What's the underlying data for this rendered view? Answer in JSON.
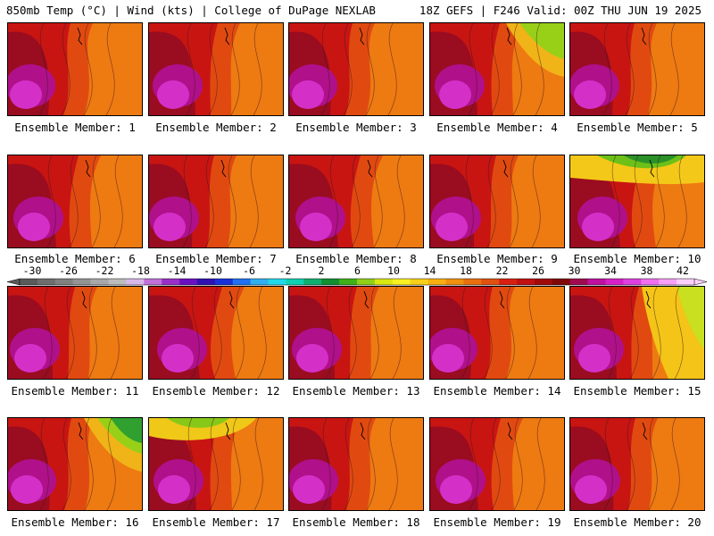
{
  "header": {
    "left": "850mb Temp (°C) | Wind (kts) | College of DuPage NEXLAB",
    "right": "18Z GEFS | F246 Valid: 00Z THU JUN 19 2025"
  },
  "colorbar": {
    "labels": [
      "-30",
      "-26",
      "-22",
      "-18",
      "-14",
      "-10",
      "-6",
      "-2",
      "2",
      "6",
      "10",
      "14",
      "18",
      "22",
      "26",
      "30",
      "34",
      "38",
      "42"
    ],
    "colors": [
      "#5a5a5a",
      "#6e6e6e",
      "#808080",
      "#949494",
      "#a8a8a8",
      "#bcbcbc",
      "#d7b8e8",
      "#c070d8",
      "#9a30c8",
      "#6a10c0",
      "#3010b0",
      "#1830d8",
      "#2070f0",
      "#30b0f0",
      "#20d8e8",
      "#10d0b0",
      "#10b070",
      "#109030",
      "#40b018",
      "#90d018",
      "#d8e810",
      "#f8f020",
      "#f8d018",
      "#f8b010",
      "#f09010",
      "#e87010",
      "#e05010",
      "#d82010",
      "#c01010",
      "#a00a0a",
      "#800808",
      "#a00a50",
      "#c010a0",
      "#d820c8",
      "#e040e0",
      "#f070f0",
      "#f8a0f8",
      "#fcd0fc"
    ]
  },
  "panels": [
    {
      "label": "Ensemble Member: 1",
      "scheme": "hot-west"
    },
    {
      "label": "Ensemble Member: 2",
      "scheme": "hot-west"
    },
    {
      "label": "Ensemble Member: 3",
      "scheme": "hot-west"
    },
    {
      "label": "Ensemble Member: 4",
      "scheme": "cool-ne"
    },
    {
      "label": "Ensemble Member: 5",
      "scheme": "hot-west"
    },
    {
      "label": "Ensemble Member: 6",
      "scheme": "hot-west"
    },
    {
      "label": "Ensemble Member: 7",
      "scheme": "hot-west"
    },
    {
      "label": "Ensemble Member: 8",
      "scheme": "hot-west"
    },
    {
      "label": "Ensemble Member: 9",
      "scheme": "hot-west"
    },
    {
      "label": "Ensemble Member: 10",
      "scheme": "cool-n"
    },
    {
      "label": "Ensemble Member: 11",
      "scheme": "hot-west"
    },
    {
      "label": "Ensemble Member: 12",
      "scheme": "hot-west"
    },
    {
      "label": "Ensemble Member: 13",
      "scheme": "hot-west"
    },
    {
      "label": "Ensemble Member: 14",
      "scheme": "hot-west"
    },
    {
      "label": "Ensemble Member: 15",
      "scheme": "cool-e"
    },
    {
      "label": "Ensemble Member: 16",
      "scheme": "cool-ne"
    },
    {
      "label": "Ensemble Member: 17",
      "scheme": "cool-nw"
    },
    {
      "label": "Ensemble Member: 18",
      "scheme": "hot-west"
    },
    {
      "label": "Ensemble Member: 19",
      "scheme": "hot-west"
    },
    {
      "label": "Ensemble Member: 20",
      "scheme": "hot-west"
    }
  ]
}
